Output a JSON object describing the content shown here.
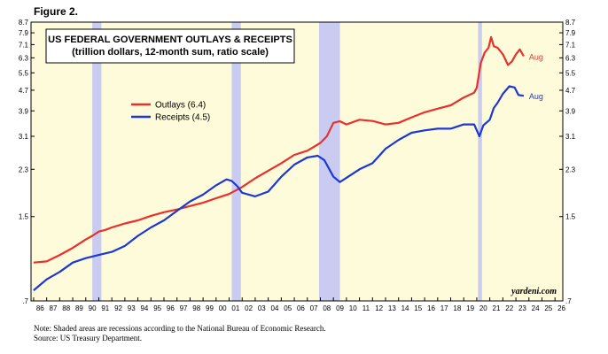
{
  "figure_label": "Figure 2.",
  "notes": {
    "line1": "Note: Shaded areas are recessions according to the National Bureau of Economic Research.",
    "line2": "Source: US Treasury Department."
  },
  "chart_data": {
    "type": "line",
    "title": "US FEDERAL GOVERNMENT OUTLAYS & RECEIPTS",
    "subtitle": "(trillion dollars, 12-month sum, ratio scale)",
    "y_scale": "log",
    "ylim": [
      0.7,
      8.7
    ],
    "yticks": [
      0.7,
      1.5,
      2.3,
      3.1,
      3.9,
      4.7,
      5.5,
      6.3,
      7.1,
      7.9,
      8.7
    ],
    "ytick_labels": [
      ".7",
      "1.5",
      "2.3",
      "3.1",
      "3.9",
      "4.7",
      "5.5",
      "6.3",
      "7.1",
      "7.9",
      "8.7"
    ],
    "xlim": [
      1985.8,
      2026.6
    ],
    "xtick_labels": [
      "86",
      "87",
      "88",
      "89",
      "90",
      "91",
      "92",
      "93",
      "94",
      "95",
      "96",
      "97",
      "98",
      "99",
      "00",
      "01",
      "02",
      "03",
      "04",
      "05",
      "06",
      "07",
      "08",
      "09",
      "10",
      "11",
      "12",
      "13",
      "14",
      "15",
      "16",
      "17",
      "18",
      "19",
      "20",
      "21",
      "22",
      "23",
      "24",
      "25",
      "26"
    ],
    "recessions": [
      [
        1990.5,
        1991.2
      ],
      [
        2001.2,
        2001.9
      ],
      [
        2007.9,
        2009.5
      ],
      [
        2020.1,
        2020.4
      ]
    ],
    "series": [
      {
        "name": "Outlays (6.4)",
        "color": "#e8312d",
        "end_label": "Aug",
        "points": [
          [
            1986.0,
            0.99
          ],
          [
            1987.0,
            1.0
          ],
          [
            1988.0,
            1.06
          ],
          [
            1989.0,
            1.13
          ],
          [
            1990.0,
            1.22
          ],
          [
            1990.5,
            1.26
          ],
          [
            1991.0,
            1.31
          ],
          [
            1991.5,
            1.33
          ],
          [
            1992.0,
            1.36
          ],
          [
            1993.0,
            1.41
          ],
          [
            1994.0,
            1.45
          ],
          [
            1995.0,
            1.51
          ],
          [
            1996.0,
            1.56
          ],
          [
            1997.0,
            1.6
          ],
          [
            1998.0,
            1.65
          ],
          [
            1999.0,
            1.7
          ],
          [
            2000.0,
            1.77
          ],
          [
            2001.0,
            1.84
          ],
          [
            2002.0,
            1.96
          ],
          [
            2003.0,
            2.12
          ],
          [
            2004.0,
            2.27
          ],
          [
            2005.0,
            2.43
          ],
          [
            2006.0,
            2.62
          ],
          [
            2007.0,
            2.72
          ],
          [
            2008.0,
            2.92
          ],
          [
            2008.5,
            3.1
          ],
          [
            2009.0,
            3.5
          ],
          [
            2009.5,
            3.55
          ],
          [
            2010.0,
            3.45
          ],
          [
            2011.0,
            3.6
          ],
          [
            2012.0,
            3.56
          ],
          [
            2013.0,
            3.45
          ],
          [
            2014.0,
            3.5
          ],
          [
            2015.0,
            3.68
          ],
          [
            2016.0,
            3.85
          ],
          [
            2017.0,
            3.98
          ],
          [
            2018.0,
            4.1
          ],
          [
            2019.0,
            4.4
          ],
          [
            2019.8,
            4.6
          ],
          [
            2020.0,
            4.8
          ],
          [
            2020.3,
            6.0
          ],
          [
            2020.6,
            6.6
          ],
          [
            2020.9,
            6.9
          ],
          [
            2021.1,
            7.6
          ],
          [
            2021.3,
            7.0
          ],
          [
            2021.6,
            6.9
          ],
          [
            2022.0,
            6.5
          ],
          [
            2022.4,
            5.9
          ],
          [
            2022.7,
            6.1
          ],
          [
            2023.0,
            6.5
          ],
          [
            2023.3,
            6.8
          ],
          [
            2023.6,
            6.4
          ]
        ]
      },
      {
        "name": "Receipts (4.5)",
        "color": "#1d37d6",
        "end_label": "Aug",
        "points": [
          [
            1986.0,
            0.77
          ],
          [
            1987.0,
            0.85
          ],
          [
            1988.0,
            0.91
          ],
          [
            1989.0,
            0.99
          ],
          [
            1990.0,
            1.03
          ],
          [
            1991.0,
            1.06
          ],
          [
            1992.0,
            1.09
          ],
          [
            1993.0,
            1.15
          ],
          [
            1994.0,
            1.26
          ],
          [
            1995.0,
            1.36
          ],
          [
            1996.0,
            1.45
          ],
          [
            1997.0,
            1.58
          ],
          [
            1998.0,
            1.72
          ],
          [
            1999.0,
            1.83
          ],
          [
            2000.0,
            1.99
          ],
          [
            2000.8,
            2.1
          ],
          [
            2001.2,
            2.07
          ],
          [
            2001.6,
            1.98
          ],
          [
            2002.0,
            1.86
          ],
          [
            2003.0,
            1.8
          ],
          [
            2004.0,
            1.88
          ],
          [
            2005.0,
            2.15
          ],
          [
            2006.0,
            2.4
          ],
          [
            2007.0,
            2.56
          ],
          [
            2007.8,
            2.6
          ],
          [
            2008.3,
            2.5
          ],
          [
            2009.0,
            2.15
          ],
          [
            2009.5,
            2.05
          ],
          [
            2010.0,
            2.13
          ],
          [
            2011.0,
            2.3
          ],
          [
            2012.0,
            2.43
          ],
          [
            2013.0,
            2.77
          ],
          [
            2014.0,
            3.0
          ],
          [
            2015.0,
            3.2
          ],
          [
            2016.0,
            3.27
          ],
          [
            2017.0,
            3.32
          ],
          [
            2018.0,
            3.32
          ],
          [
            2019.0,
            3.45
          ],
          [
            2019.8,
            3.45
          ],
          [
            2020.2,
            3.1
          ],
          [
            2020.5,
            3.42
          ],
          [
            2021.0,
            3.6
          ],
          [
            2021.3,
            4.0
          ],
          [
            2021.6,
            4.2
          ],
          [
            2022.0,
            4.55
          ],
          [
            2022.5,
            4.87
          ],
          [
            2022.9,
            4.82
          ],
          [
            2023.2,
            4.5
          ],
          [
            2023.6,
            4.47
          ]
        ]
      }
    ]
  },
  "chart_labels": {
    "watermark": "yardeni.com"
  },
  "colors": {
    "plot_bg": "#fdfbd9",
    "recession_band": "#c9ccf0"
  }
}
